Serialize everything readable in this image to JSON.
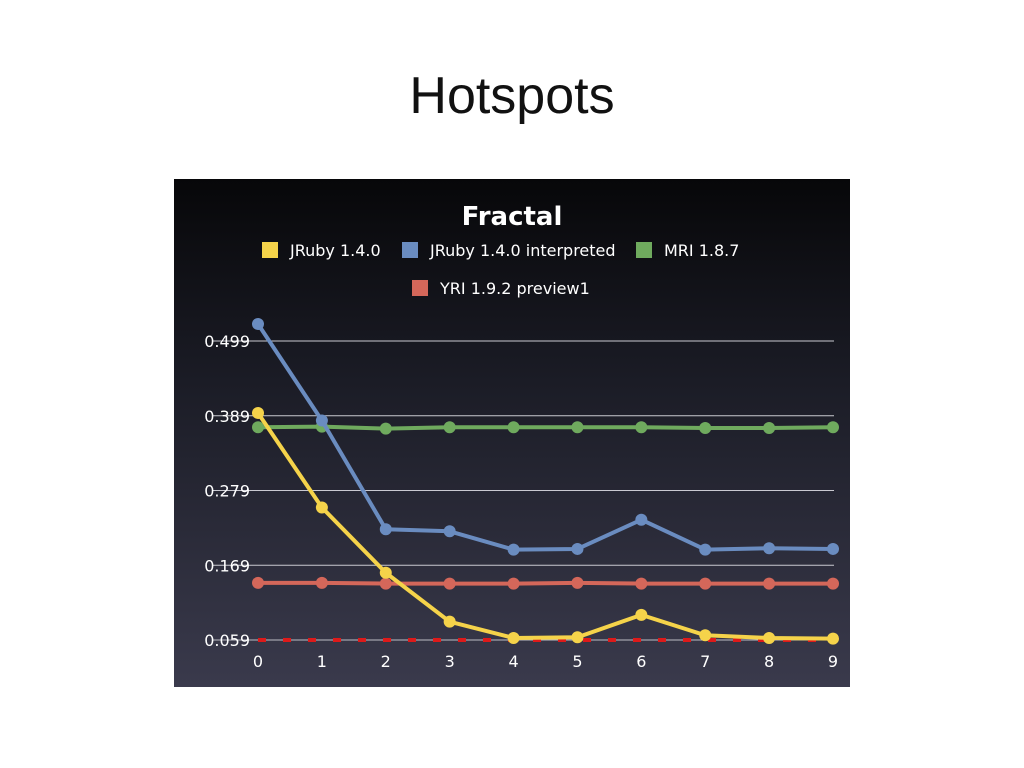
{
  "slide": {
    "title": "Hotspots"
  },
  "chart_data": {
    "type": "line",
    "title": "Fractal",
    "xlabel": "",
    "ylabel": "",
    "x": [
      0,
      1,
      2,
      3,
      4,
      5,
      6,
      7,
      8,
      9
    ],
    "yticks": [
      "0.059",
      "0.169",
      "0.279",
      "0.389",
      "0.499"
    ],
    "ylim": [
      0.059,
      0.499
    ],
    "grid": true,
    "legend": "top",
    "background": [
      "#070709",
      "#3a3a4c"
    ],
    "series": [
      {
        "name": "JRuby 1.4.0",
        "color": "#f5d34a",
        "style": "solid",
        "values": [
          0.393,
          0.254,
          0.158,
          0.086,
          0.062,
          0.063,
          0.096,
          0.066,
          0.062,
          0.061
        ]
      },
      {
        "name": "JRuby 1.4.0 interpreted",
        "color": "#6a8cc0",
        "style": "solid",
        "values": [
          0.524,
          0.382,
          0.222,
          0.219,
          0.192,
          0.193,
          0.236,
          0.192,
          0.194,
          0.193
        ]
      },
      {
        "name": "MRI 1.8.7",
        "color": "#6faa5e",
        "style": "solid",
        "values": [
          0.372,
          0.373,
          0.37,
          0.372,
          0.372,
          0.372,
          0.372,
          0.371,
          0.371,
          0.372
        ]
      },
      {
        "name": "YRI 1.9.2 preview1",
        "color": "#d4675a",
        "style": "solid",
        "values": [
          0.143,
          0.143,
          0.142,
          0.142,
          0.142,
          0.143,
          0.142,
          0.142,
          0.142,
          0.142
        ]
      },
      {
        "name": "",
        "color": "#dd1a1a",
        "style": "dotted",
        "values": [
          0.059,
          0.059,
          0.059,
          0.059,
          0.059,
          0.059,
          0.059,
          0.059,
          0.059,
          0.059
        ]
      }
    ]
  }
}
